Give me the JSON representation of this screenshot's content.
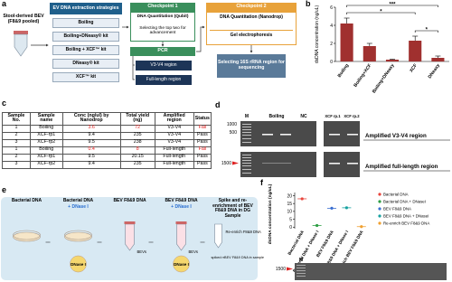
{
  "panels": {
    "labels": [
      "a",
      "b",
      "c",
      "d",
      "e",
      "f"
    ],
    "a": {
      "source": "Stool-derived BEV (F8&9 pooled)",
      "methods_title": "EV DNA extraction strategies",
      "methods": [
        "Boiling",
        "Boiling+DNeasy® kit",
        "Boiling + XCF™ kit",
        "DNeasy® kit",
        "XCF™ kit"
      ],
      "checkpoint1": {
        "title": "Checkpoint 1",
        "steps": [
          "DNA Quantitation (Qubit)",
          "Selecting the top two for advancement"
        ]
      },
      "pcr": {
        "title": "PCR",
        "steps": [
          "V3-V4 region",
          "Full-length region"
        ]
      },
      "checkpoint2": {
        "title": "Checkpoint 2",
        "steps": [
          "DNA Quantitation (Nanodrop)",
          "Gel electrophoresis"
        ],
        "outcome": "Selecting 16S rRNA region for sequencing"
      }
    },
    "c": {
      "header": [
        "Sample No.",
        "Sample name",
        "Conc (ng/ul) by Nanodrop",
        "Total yield (ng)",
        "Amplified region",
        "Status"
      ],
      "rows": [
        {
          "cells": [
            1,
            "Boiling",
            3.6,
            72,
            "V3-V4",
            "Fail"
          ],
          "color": "#e02020"
        },
        {
          "cells": [
            2,
            "XCF-rp1",
            9.4,
            235,
            "V3-V4",
            "Pass"
          ],
          "color": "#000000"
        },
        {
          "cells": [
            3,
            "XCF-rp2",
            9.5,
            238,
            "V3-V4",
            "Pass"
          ],
          "color": "#000000"
        },
        {
          "cells": [
            1,
            "Boiling",
            0.4,
            8,
            "Full-length",
            "Fail"
          ],
          "color": "#e02020"
        },
        {
          "cells": [
            2,
            "XCF-rp1",
            9.5,
            20.15,
            "Full-length",
            "Pass"
          ],
          "color": "#000000"
        },
        {
          "cells": [
            3,
            "XCF-rp2",
            9.4,
            235,
            "Full-length",
            "Pass"
          ],
          "color": "#000000"
        }
      ]
    },
    "d": {
      "lanes": [
        "M",
        "Boiling",
        "NC",
        "XCF rp.1",
        "XCF rp.2"
      ],
      "ladder": [
        1000,
        500,
        1500
      ],
      "regions": [
        "Amplified V3-V4 region",
        "Amplified full-length region"
      ]
    },
    "e": {
      "groups": [
        {
          "title": "Bacterial DNA"
        },
        {
          "title": "Bacterial DNA",
          "treatment": "+ DNase I"
        },
        {
          "title": "BEV F8&9 DNA"
        },
        {
          "title": "BEV F8&9 DNA",
          "treatment": "+ DNase I"
        },
        {
          "title": "Spike and re-enrichment of BEV F8&9 DNA in DG Sample"
        }
      ],
      "enzyme": [
        "DNase I",
        "DNase I"
      ],
      "bevs": [
        "BEVs",
        "BEVs"
      ],
      "reenrich": "Re-enrich F8&9 DNA",
      "spiked": "spiked rrBEV F8&9 DNA in sample"
    },
    "f_gel": {
      "lane": "M",
      "marker": 1500
    }
  },
  "chart_data": [
    {
      "type": "bar",
      "ylabel": "dsDNA concentration (ng/uL)",
      "categories": [
        "Boiling",
        "Boiling+XCF",
        "Boiling+DNeasy",
        "XCF",
        "DNeasy"
      ],
      "values": [
        4.2,
        1.7,
        0.2,
        2.3,
        0.4
      ],
      "errors": [
        0.6,
        0.3,
        0.05,
        0.5,
        0.2
      ],
      "color": "#a0302f",
      "ylim": [
        0,
        6
      ],
      "yticks": [
        0,
        2,
        4,
        6
      ],
      "significance": [
        "***",
        "*",
        "*"
      ]
    },
    {
      "type": "dot",
      "ylabel": "dsDNA concentration (ng/uL)",
      "categories": [
        "Bacterial DNA",
        "Bacterial DNA + DNase I",
        "BEV F8&9 DNA",
        "BEV F8&9 DNA + DNase I",
        "Re-enrich BEV F8&9 DNA"
      ],
      "legend": [
        "Bacterial DNA",
        "Bacterial DNA + DNaseI",
        "BEV F8&9 DNA",
        "BEV F8&9 DNA + DNaseI",
        "Re-enrich BEV F8&9 DNA"
      ],
      "values": [
        18,
        1,
        12,
        12.3,
        0.3
      ],
      "colors": [
        "#e8453c",
        "#2e9e44",
        "#3b6fd1",
        "#17a2a0",
        "#f0a030"
      ],
      "ylim": [
        -1,
        22
      ],
      "yticks": [
        0,
        5,
        10,
        15,
        20
      ]
    }
  ]
}
